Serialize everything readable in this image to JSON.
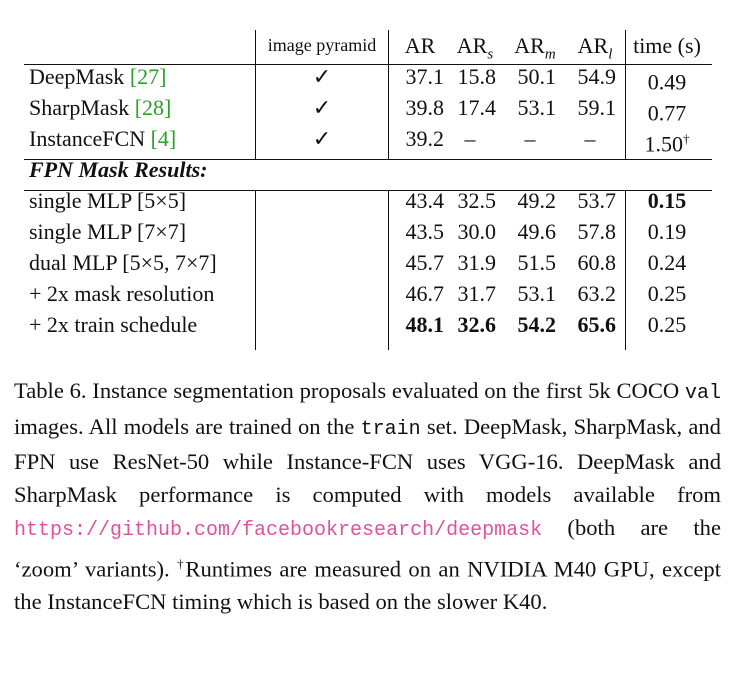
{
  "header": {
    "col1": "",
    "image_pyramid": "image pyramid",
    "ar": "AR",
    "ar_s_base": "AR",
    "ar_s_sub": "s",
    "ar_m_base": "AR",
    "ar_m_sub": "m",
    "ar_l_base": "AR",
    "ar_l_sub": "l",
    "time": "time (s)"
  },
  "baselines": [
    {
      "name": "DeepMask",
      "ref": "[27]",
      "pyramid": "✓",
      "ar": "37.1",
      "ars": "15.8",
      "arm": "50.1",
      "arl": "54.9",
      "time": "0.49",
      "time_sup": ""
    },
    {
      "name": "SharpMask",
      "ref": "[28]",
      "pyramid": "✓",
      "ar": "39.8",
      "ars": "17.4",
      "arm": "53.1",
      "arl": "59.1",
      "time": "0.77",
      "time_sup": ""
    },
    {
      "name": "InstanceFCN",
      "ref": "[4]",
      "pyramid": "✓",
      "ar": "39.2",
      "ars": "–",
      "arm": "–",
      "arl": "–",
      "time": "1.50",
      "time_sup": "†"
    }
  ],
  "section_title": "FPN Mask Results:",
  "fpn_rows": [
    {
      "name": "single MLP [5×5]",
      "ar": "43.4",
      "ars": "32.5",
      "arm": "49.2",
      "arl": "53.7",
      "time": "0.15"
    },
    {
      "name": "single MLP [7×7]",
      "ar": "43.5",
      "ars": "30.0",
      "arm": "49.6",
      "arl": "57.8",
      "time": "0.19"
    },
    {
      "name": "dual MLP [5×5, 7×7]",
      "ar": "45.7",
      "ars": "31.9",
      "arm": "51.5",
      "arl": "60.8",
      "time": "0.24"
    },
    {
      "name": "+ 2x mask resolution",
      "ar": "46.7",
      "ars": "31.7",
      "arm": "53.1",
      "arl": "63.2",
      "time": "0.25"
    },
    {
      "name": "+ 2x train schedule",
      "ar": "48.1",
      "ars": "32.6",
      "arm": "54.2",
      "arl": "65.6",
      "time": "0.25"
    }
  ],
  "caption": {
    "p1": "Table 6. Instance segmentation proposals evaluated on the first 5k COCO ",
    "val": "val",
    "p2": " images.  All models are trained on the ",
    "train": "train",
    "p3": " set. DeepMask, SharpMask, and FPN use ResNet-50 while Instance-FCN uses VGG-16.  DeepMask and SharpMask performance is computed with models available from ",
    "link1": "https://github.",
    "link2": "com/facebookresearch/deepmask",
    "p4": " (both are the ‘zoom’ variants). ",
    "dagger": "†",
    "p5": "Runtimes are measured on an NVIDIA M40 GPU, except the InstanceFCN timing which is based on the slower K40."
  }
}
